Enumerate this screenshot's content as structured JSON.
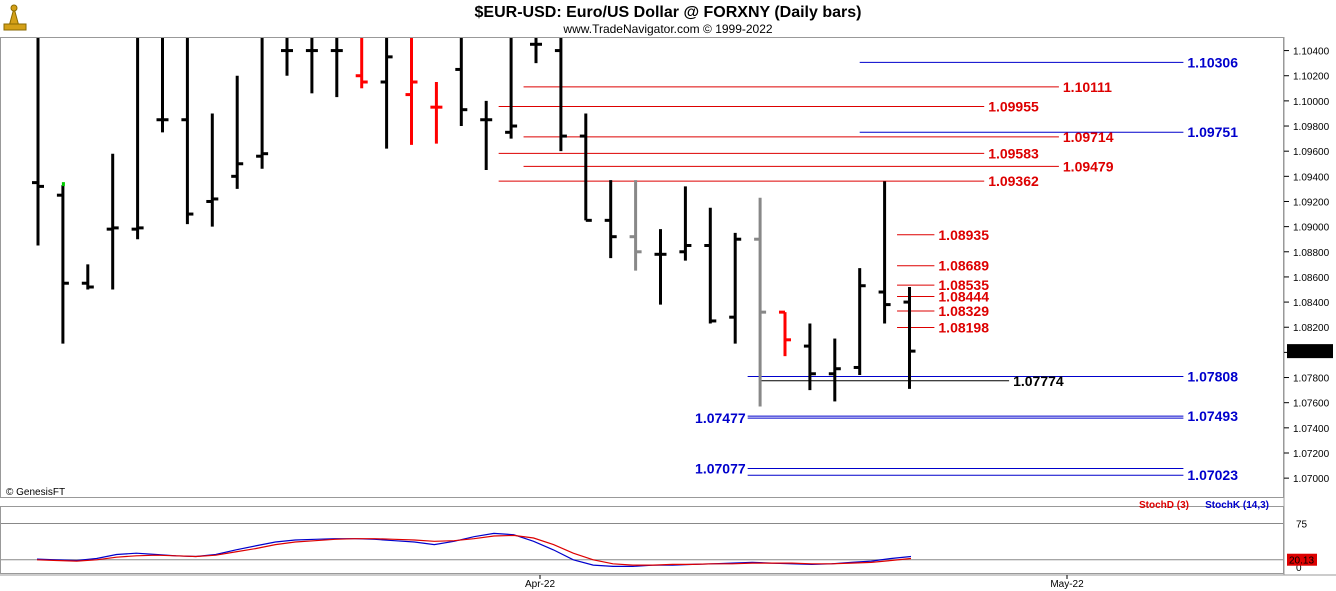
{
  "header": {
    "title": "$EUR-USD:  Euro/US Dollar @ FORXNY  (Daily bars)",
    "subtitle": "www.TradeNavigator.com © 1999-2022"
  },
  "copyright": "© GenesisFT",
  "logo_icon": "trade-navigator-logo-icon",
  "colors": {
    "up": "#000000",
    "down": "#ff0000",
    "gray": "#888888",
    "green": "#00cc00",
    "blue_level": "#0000cc",
    "red_level": "#dd0000",
    "stoch_k": "#0000cc",
    "stoch_d": "#dd0000"
  },
  "chart_data": [
    {
      "type": "ohlc",
      "title": "$EUR-USD:  Euro/US Dollar @ FORXNY  (Daily bars)",
      "ylim": [
        1.0685,
        1.105
      ],
      "y_ticks": [
        "1.10400",
        "1.10200",
        "1.10000",
        "1.09800",
        "1.09600",
        "1.09400",
        "1.09200",
        "1.09000",
        "1.08800",
        "1.08600",
        "1.08400",
        "1.08200",
        "1.08000",
        "1.07800",
        "1.07600",
        "1.07400",
        "1.07200",
        "1.07000"
      ],
      "x_ticks": [
        "Apr-22",
        "May-22"
      ],
      "last_price": "1.08010",
      "bars": [
        {
          "o": 1.0935,
          "h": 1.1055,
          "l": 1.0885,
          "c": 1.0932,
          "col": "up"
        },
        {
          "o": 1.0925,
          "h": 1.0933,
          "l": 1.0807,
          "c": 1.0855,
          "col": "up",
          "mark": "green"
        },
        {
          "o": 1.0855,
          "h": 1.087,
          "l": 1.085,
          "c": 1.0852,
          "col": "up"
        },
        {
          "o": 1.0898,
          "h": 1.0958,
          "l": 1.085,
          "c": 1.0899,
          "col": "up"
        },
        {
          "o": 1.0898,
          "h": 1.1055,
          "l": 1.089,
          "c": 1.0899,
          "col": "up"
        },
        {
          "o": 1.0985,
          "h": 1.1055,
          "l": 1.0975,
          "c": 1.0985,
          "col": "up"
        },
        {
          "o": 1.0985,
          "h": 1.1055,
          "l": 1.0902,
          "c": 1.091,
          "col": "up"
        },
        {
          "o": 1.092,
          "h": 1.099,
          "l": 1.09,
          "c": 1.0922,
          "col": "up"
        },
        {
          "o": 1.094,
          "h": 1.102,
          "l": 1.093,
          "c": 1.095,
          "col": "up"
        },
        {
          "o": 1.0956,
          "h": 1.1055,
          "l": 1.0946,
          "c": 1.0958,
          "col": "up"
        },
        {
          "o": 1.104,
          "h": 1.1055,
          "l": 1.102,
          "c": 1.104,
          "col": "up"
        },
        {
          "o": 1.104,
          "h": 1.1055,
          "l": 1.1006,
          "c": 1.104,
          "col": "up"
        },
        {
          "o": 1.104,
          "h": 1.1055,
          "l": 1.1003,
          "c": 1.104,
          "col": "up"
        },
        {
          "o": 1.102,
          "h": 1.1055,
          "l": 1.101,
          "c": 1.1015,
          "col": "down"
        },
        {
          "o": 1.1015,
          "h": 1.1055,
          "l": 1.0962,
          "c": 1.1035,
          "col": "up"
        },
        {
          "o": 1.1005,
          "h": 1.1055,
          "l": 1.0965,
          "c": 1.1015,
          "col": "down"
        },
        {
          "o": 1.0995,
          "h": 1.1015,
          "l": 1.0966,
          "c": 1.0995,
          "col": "down"
        },
        {
          "o": 1.1025,
          "h": 1.1055,
          "l": 1.098,
          "c": 1.0993,
          "col": "up"
        },
        {
          "o": 1.0985,
          "h": 1.1,
          "l": 1.0945,
          "c": 1.0985,
          "col": "up"
        },
        {
          "o": 1.0975,
          "h": 1.1055,
          "l": 1.097,
          "c": 1.098,
          "col": "up"
        },
        {
          "o": 1.1045,
          "h": 1.1055,
          "l": 1.103,
          "c": 1.1045,
          "col": "up"
        },
        {
          "o": 1.104,
          "h": 1.1055,
          "l": 1.096,
          "c": 1.0972,
          "col": "up"
        },
        {
          "o": 1.0972,
          "h": 1.099,
          "l": 1.0905,
          "c": 1.0905,
          "col": "up"
        },
        {
          "o": 1.0905,
          "h": 1.0937,
          "l": 1.0875,
          "c": 1.0892,
          "col": "up"
        },
        {
          "o": 1.0892,
          "h": 1.0937,
          "l": 1.0865,
          "c": 1.088,
          "col": "gray"
        },
        {
          "o": 1.0878,
          "h": 1.0898,
          "l": 1.0838,
          "c": 1.0878,
          "col": "up"
        },
        {
          "o": 1.088,
          "h": 1.0932,
          "l": 1.0873,
          "c": 1.0885,
          "col": "up"
        },
        {
          "o": 1.0885,
          "h": 1.0915,
          "l": 1.0823,
          "c": 1.0825,
          "col": "up"
        },
        {
          "o": 1.0828,
          "h": 1.0895,
          "l": 1.0807,
          "c": 1.089,
          "col": "up"
        },
        {
          "o": 1.089,
          "h": 1.0923,
          "l": 1.0757,
          "c": 1.0832,
          "col": "gray"
        },
        {
          "o": 1.0832,
          "h": 1.0832,
          "l": 1.0797,
          "c": 1.081,
          "col": "down"
        },
        {
          "o": 1.0805,
          "h": 1.0823,
          "l": 1.077,
          "c": 1.0783,
          "col": "up"
        },
        {
          "o": 1.0783,
          "h": 1.0811,
          "l": 1.0761,
          "c": 1.0787,
          "col": "up"
        },
        {
          "o": 1.0788,
          "h": 1.0867,
          "l": 1.0782,
          "c": 1.0853,
          "col": "up"
        },
        {
          "o": 1.0848,
          "h": 1.0936,
          "l": 1.0823,
          "c": 1.0838,
          "col": "up"
        },
        {
          "o": 1.084,
          "h": 1.0852,
          "l": 1.0771,
          "c": 1.0801,
          "col": "up"
        }
      ],
      "levels": [
        {
          "value": 1.10306,
          "label": "1.10306",
          "color": "blue",
          "from": 33,
          "to": 46,
          "label_at": "right"
        },
        {
          "value": 1.10111,
          "label": "1.10111",
          "color": "red",
          "from": 19.5,
          "to": 41,
          "label_at": "right"
        },
        {
          "value": 1.09955,
          "label": "1.09955",
          "color": "red",
          "from": 18.5,
          "to": 38,
          "label_at": "right"
        },
        {
          "value": 1.09751,
          "label": "1.09751",
          "color": "blue",
          "from": 33,
          "to": 46,
          "label_at": "right"
        },
        {
          "value": 1.09714,
          "label": "1.09714",
          "color": "red",
          "from": 19.5,
          "to": 41,
          "label_at": "right"
        },
        {
          "value": 1.09583,
          "label": "1.09583",
          "color": "red",
          "from": 18.5,
          "to": 38,
          "label_at": "right"
        },
        {
          "value": 1.09479,
          "label": "1.09479",
          "color": "red",
          "from": 19.5,
          "to": 41,
          "label_at": "right"
        },
        {
          "value": 1.09362,
          "label": "1.09362",
          "color": "red",
          "from": 18.5,
          "to": 38,
          "label_at": "right"
        },
        {
          "value": 1.08935,
          "label": "1.08935",
          "color": "red",
          "from": 34.5,
          "to": 36,
          "label_at": "right"
        },
        {
          "value": 1.08689,
          "label": "1.08689",
          "color": "red",
          "from": 34.5,
          "to": 36,
          "label_at": "right"
        },
        {
          "value": 1.08535,
          "label": "1.08535",
          "color": "red",
          "from": 34.5,
          "to": 36,
          "label_at": "right"
        },
        {
          "value": 1.08444,
          "label": "1.08444",
          "color": "red",
          "from": 34.5,
          "to": 36,
          "label_at": "right"
        },
        {
          "value": 1.08329,
          "label": "1.08329",
          "color": "red",
          "from": 34.5,
          "to": 36,
          "label_at": "right"
        },
        {
          "value": 1.08198,
          "label": "1.08198",
          "color": "red",
          "from": 34.5,
          "to": 36,
          "label_at": "right"
        },
        {
          "value": 1.07808,
          "label": "1.07808",
          "color": "blue",
          "from": 28.5,
          "to": 46,
          "label_at": "right"
        },
        {
          "value": 1.07774,
          "label": "1.07774",
          "color": "black",
          "from": 29,
          "to": 39,
          "label_at": "right"
        },
        {
          "value": 1.07493,
          "label": "1.07493",
          "color": "blue",
          "from": 28.5,
          "to": 46,
          "label_at": "right"
        },
        {
          "value": 1.07477,
          "label": "1.07477",
          "color": "blue",
          "from": 28.5,
          "to": 46,
          "label_at": "left"
        },
        {
          "value": 1.07077,
          "label": "1.07077",
          "color": "blue",
          "from": 28.5,
          "to": 46,
          "label_at": "left"
        },
        {
          "value": 1.07023,
          "label": "1.07023",
          "color": "blue",
          "from": 28.5,
          "to": 46,
          "label_at": "right"
        }
      ]
    },
    {
      "type": "line",
      "title": "",
      "legend": [
        "StochD (3)",
        "StochK (14,3)"
      ],
      "ylim": [
        0,
        100
      ],
      "y_ticks": [
        "75",
        "0"
      ],
      "last_value": "20.13",
      "reference_lines": [
        75,
        20
      ],
      "series": [
        {
          "name": "StochK (14,3)",
          "color": "blue",
          "values": [
            21,
            20,
            19,
            22,
            28,
            30,
            28,
            26,
            25,
            28,
            35,
            41,
            47,
            50,
            51,
            52,
            52,
            51,
            49,
            47,
            43,
            48,
            55,
            60,
            58,
            48,
            35,
            20,
            12,
            10,
            10,
            12,
            12,
            13,
            14,
            15,
            16,
            15,
            14,
            13,
            14,
            16,
            18,
            22,
            25
          ]
        },
        {
          "name": "StochD (3)",
          "color": "red",
          "values": [
            20,
            19,
            18,
            20,
            24,
            26,
            27,
            26,
            25,
            27,
            32,
            37,
            43,
            47,
            49,
            51,
            52,
            52,
            51,
            50,
            48,
            49,
            52,
            56,
            57,
            53,
            43,
            30,
            20,
            14,
            12,
            12,
            13,
            13,
            14,
            14,
            15,
            15,
            15,
            14,
            14,
            15,
            16,
            19,
            22
          ]
        }
      ]
    }
  ]
}
